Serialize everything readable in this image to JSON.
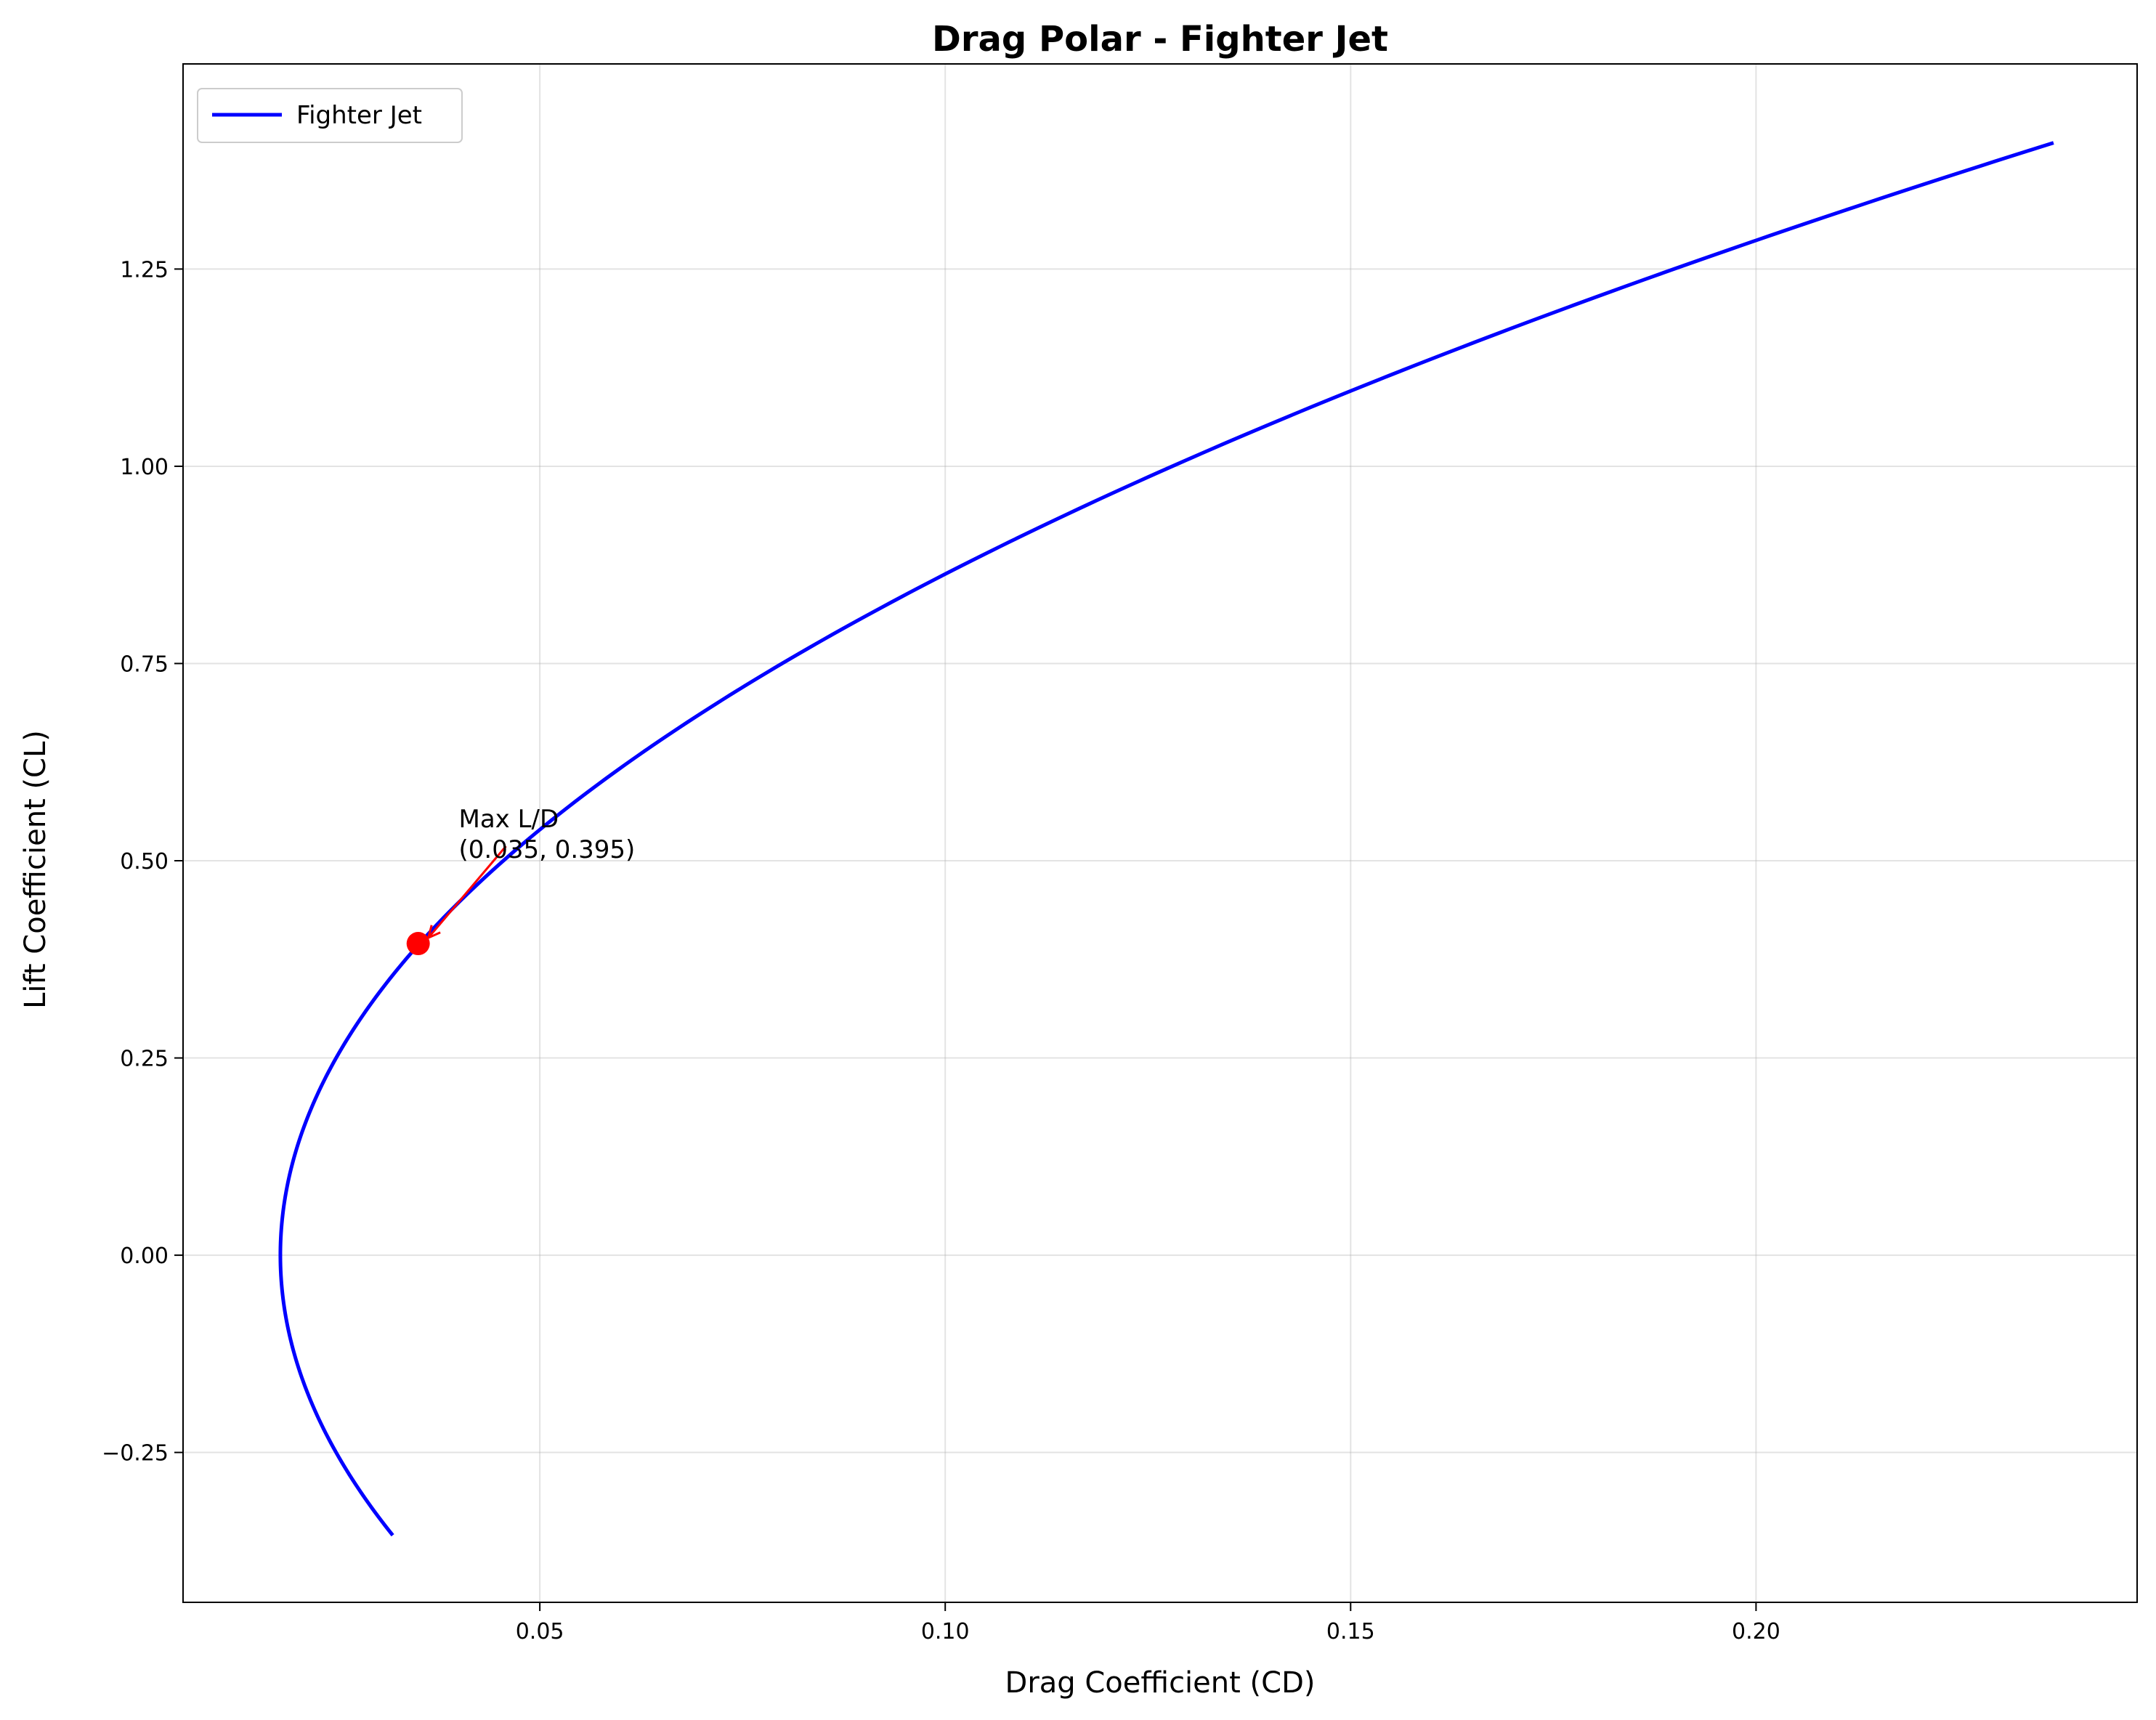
{
  "chart_data": {
    "type": "line",
    "title": "Drag Polar - Fighter Jet",
    "xlabel": "Drag Coefficient (CD)",
    "ylabel": "Lift Coefficient (CL)",
    "xlim": [
      0.006,
      0.247
    ],
    "ylim": [
      -0.44,
      1.51
    ],
    "xticks": [
      0.05,
      0.1,
      0.15,
      0.2
    ],
    "xtick_labels": [
      "0.05",
      "0.10",
      "0.15",
      "0.20"
    ],
    "yticks": [
      -0.25,
      0.0,
      0.25,
      0.5,
      0.75,
      1.0,
      1.25
    ],
    "ytick_labels": [
      "−0.25",
      "0.00",
      "0.25",
      "0.50",
      "0.75",
      "1.00",
      "1.25"
    ],
    "grid": true,
    "legend_position": "top-left",
    "series": [
      {
        "name": "Fighter Jet",
        "color": "#0000ff",
        "equation": "CD = 0.018 + 0.11 * CL^2",
        "cl_range": [
          -0.355,
          1.41
        ]
      }
    ],
    "annotation": {
      "label_line1": "Max L/D",
      "label_line2": "(0.035, 0.395)",
      "point": {
        "x": 0.035,
        "y": 0.395
      },
      "text_anchor": {
        "x": 0.04,
        "y": 0.5
      },
      "point_color": "#ff0000",
      "arrow_color": "#ff0000"
    }
  }
}
